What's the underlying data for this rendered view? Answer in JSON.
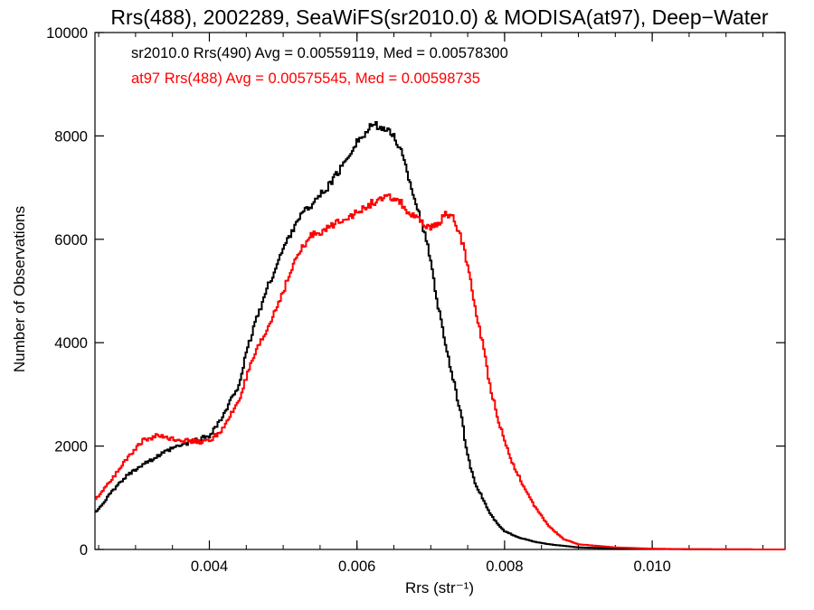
{
  "chart_data": {
    "type": "line",
    "title": "Rrs(488), 2002289, SeaWiFS(sr2010.0) & MODISA(at97), Deep−Water",
    "xlabel": "Rrs (str⁻¹)",
    "ylabel": "Number of Observations",
    "xlim": [
      0.00245,
      0.0118
    ],
    "ylim": [
      0,
      10000
    ],
    "x_ticks": [
      0.004,
      0.006,
      0.008,
      0.01
    ],
    "x_tick_labels": [
      "0.004",
      "0.006",
      "0.008",
      "0.010"
    ],
    "y_ticks": [
      0,
      2000,
      4000,
      6000,
      8000,
      10000
    ],
    "y_tick_labels": [
      "0",
      "2000",
      "4000",
      "6000",
      "8000",
      "10000"
    ],
    "grid": false,
    "legend_placement": "top-left",
    "style": "step",
    "series": [
      {
        "name": "sr2010.0 Rrs(490) Avg = 0.00559119, Med = 0.00578300",
        "color": "#000000",
        "x": [
          0.00245,
          0.0027,
          0.0029,
          0.0031,
          0.0033,
          0.0035,
          0.0037,
          0.0039,
          0.004,
          0.0042,
          0.0044,
          0.0046,
          0.0048,
          0.005,
          0.0052,
          0.0054,
          0.0056,
          0.0058,
          0.006,
          0.0061,
          0.0062,
          0.0063,
          0.0064,
          0.0065,
          0.0066,
          0.0067,
          0.0068,
          0.0069,
          0.007,
          0.0071,
          0.0072,
          0.0073,
          0.0074,
          0.0075,
          0.0076,
          0.0077,
          0.0078,
          0.0079,
          0.008,
          0.0082,
          0.0084,
          0.0086,
          0.0088,
          0.009,
          0.0095,
          0.01,
          0.0105,
          0.011,
          0.0118
        ],
        "values": [
          700,
          1150,
          1450,
          1650,
          1800,
          1950,
          2050,
          2150,
          2200,
          2600,
          3200,
          4300,
          5100,
          5800,
          6400,
          6700,
          7000,
          7400,
          7900,
          8000,
          8200,
          8200,
          8100,
          8000,
          7700,
          7200,
          6700,
          6200,
          5600,
          4700,
          4000,
          3300,
          2700,
          1800,
          1300,
          1000,
          700,
          500,
          350,
          230,
          150,
          100,
          70,
          40,
          20,
          10,
          5,
          2,
          0
        ]
      },
      {
        "name": "at97 Rrs(488) Avg = 0.00575545, Med = 0.00598735",
        "color": "#ff0000",
        "x": [
          0.00245,
          0.0027,
          0.0029,
          0.0031,
          0.0033,
          0.0035,
          0.0037,
          0.0039,
          0.004,
          0.0042,
          0.0044,
          0.0046,
          0.0048,
          0.005,
          0.0052,
          0.0054,
          0.0056,
          0.0058,
          0.006,
          0.0062,
          0.0064,
          0.0065,
          0.0066,
          0.0067,
          0.0068,
          0.0069,
          0.007,
          0.0071,
          0.0072,
          0.0073,
          0.0074,
          0.0075,
          0.0076,
          0.0077,
          0.0078,
          0.0079,
          0.008,
          0.0081,
          0.0082,
          0.0083,
          0.0084,
          0.0086,
          0.0088,
          0.009,
          0.0095,
          0.01,
          0.0105,
          0.011,
          0.0118
        ],
        "values": [
          950,
          1400,
          1800,
          2100,
          2200,
          2150,
          2100,
          2080,
          2100,
          2350,
          2900,
          3700,
          4300,
          5000,
          5700,
          6100,
          6200,
          6400,
          6500,
          6700,
          6800,
          6800,
          6700,
          6500,
          6400,
          6300,
          6200,
          6300,
          6500,
          6400,
          6100,
          5500,
          4700,
          4000,
          3200,
          2600,
          2100,
          1700,
          1400,
          1100,
          850,
          450,
          200,
          100,
          40,
          15,
          5,
          2,
          0
        ]
      }
    ]
  }
}
